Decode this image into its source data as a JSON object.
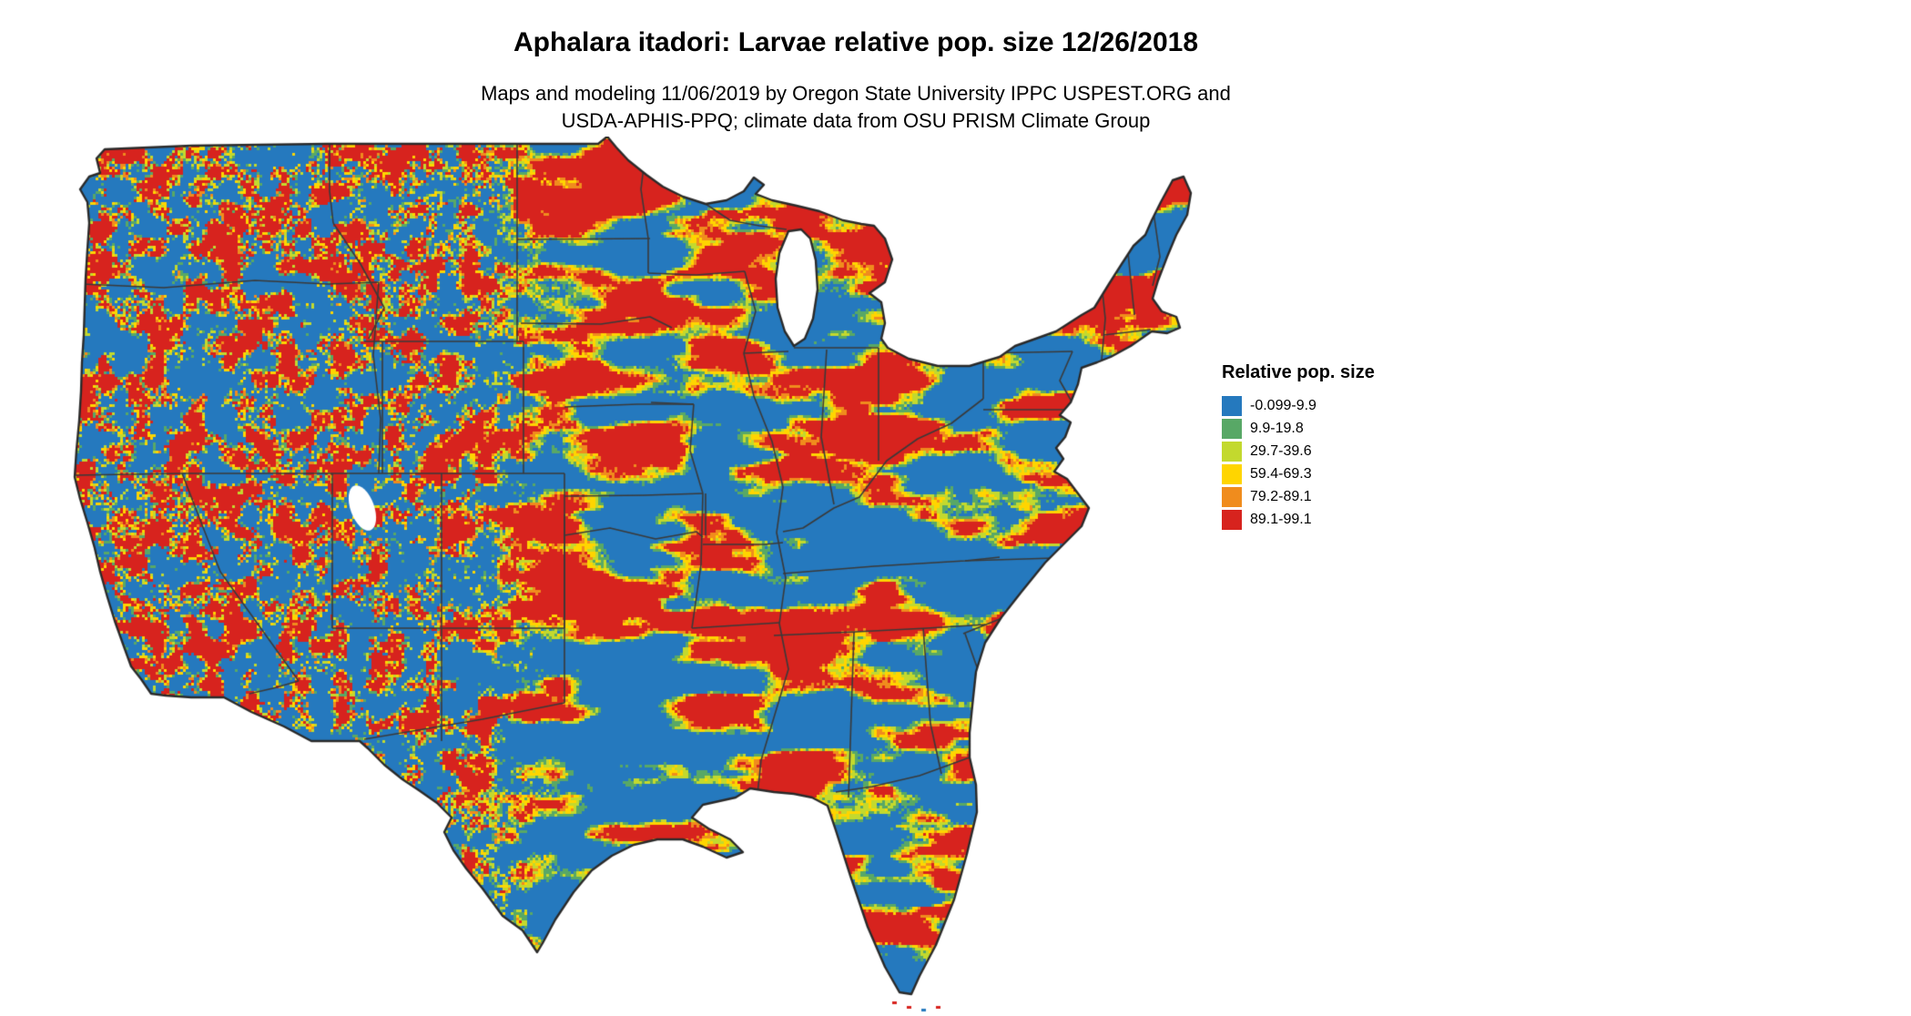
{
  "header": {
    "title": "Aphalara itadori: Larvae relative pop. size 12/26/2018",
    "subtitle_line1": "Maps and modeling 11/06/2019 by Oregon State University IPPC USPEST.ORG and",
    "subtitle_line2": "USDA-APHIS-PPQ; climate data from OSU PRISM Climate Group"
  },
  "legend": {
    "title": "Relative pop. size",
    "items": [
      {
        "label": "-0.099-9.9",
        "color": "#2579be"
      },
      {
        "label": "9.9-19.8",
        "color": "#58a866"
      },
      {
        "label": "29.7-39.6",
        "color": "#c3d92e"
      },
      {
        "label": "59.4-69.3",
        "color": "#ffd500"
      },
      {
        "label": "79.2-89.1",
        "color": "#f08c1d"
      },
      {
        "label": "89.1-99.1",
        "color": "#d7231e"
      }
    ]
  },
  "map": {
    "region": "Continental United States",
    "state_border_color": "#3a3a3a",
    "outline_color": "#2a2a2a",
    "water_color": "#ffffff"
  }
}
